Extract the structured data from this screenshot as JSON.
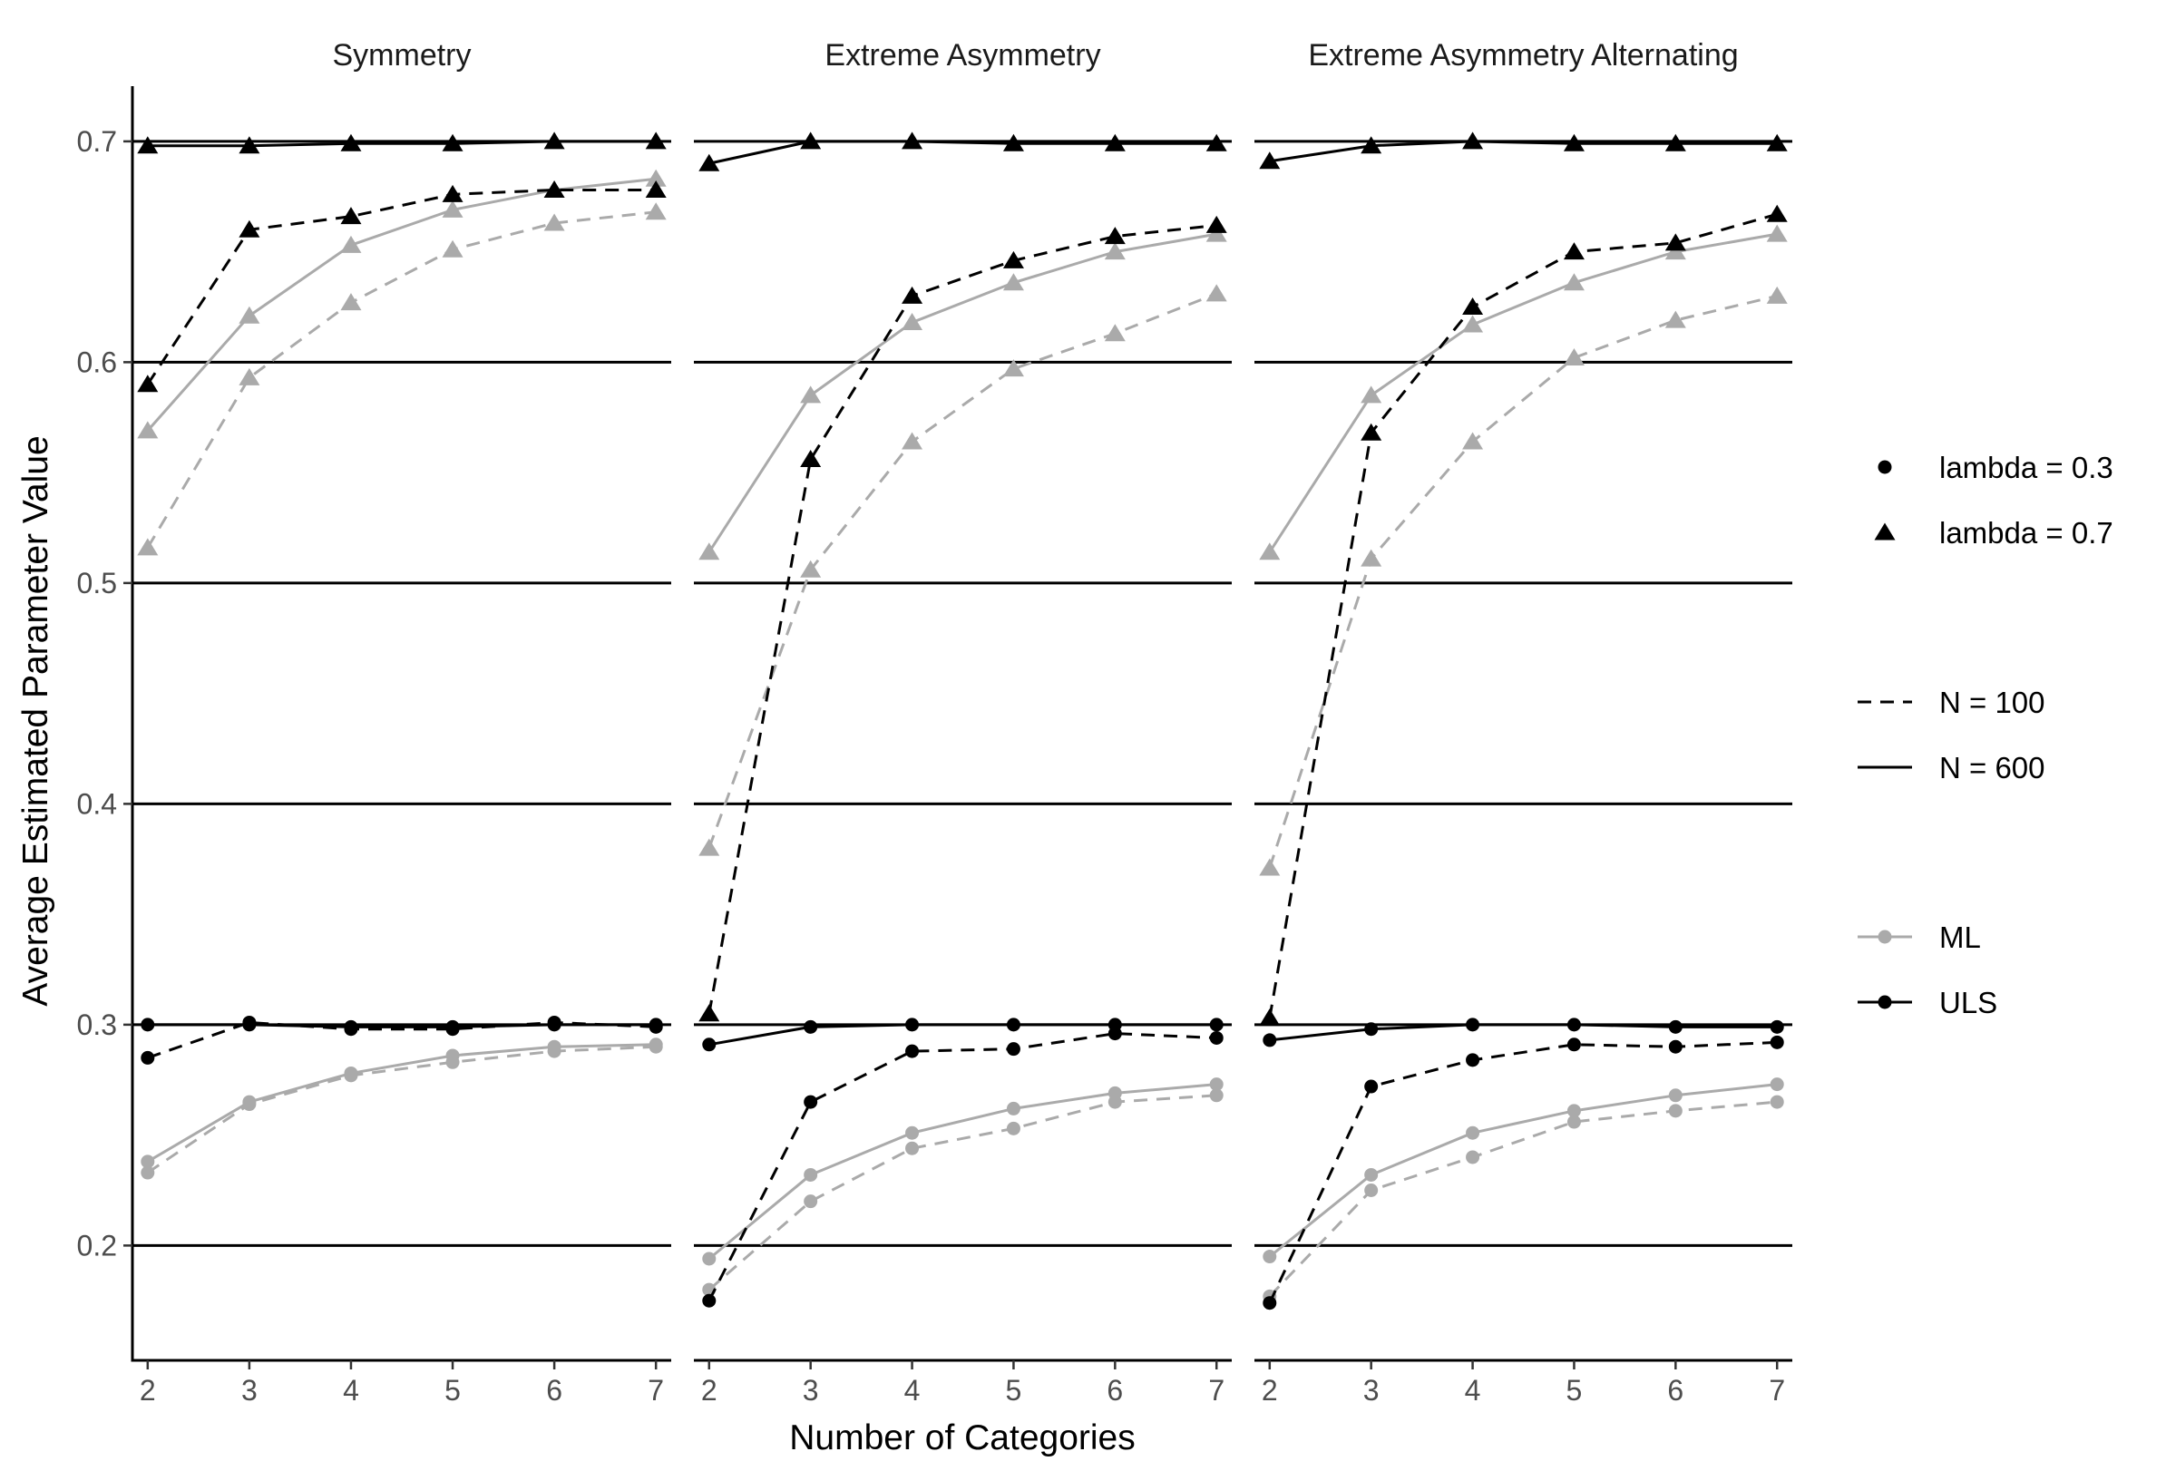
{
  "chart_data": {
    "type": "line",
    "xlabel": "Number of Categories",
    "ylabel": "Average Estimated Parameter Value",
    "x": [
      2,
      3,
      4,
      5,
      6,
      7
    ],
    "x_ticks": [
      "2",
      "3",
      "4",
      "5",
      "6",
      "7"
    ],
    "y_ticks": [
      "0.2",
      "0.3",
      "0.4",
      "0.5",
      "0.6",
      "0.7"
    ],
    "y_tick_values": [
      0.2,
      0.3,
      0.4,
      0.5,
      0.6,
      0.7
    ],
    "ylim": [
      0.148,
      0.725
    ],
    "xlim": [
      1.85,
      7.15
    ],
    "reference_lines": [
      0.2,
      0.3,
      0.4,
      0.5,
      0.6,
      0.7
    ],
    "colors": {
      "ML": "#aaaaaa",
      "ULS": "#000000"
    },
    "legend": {
      "placement": "right",
      "shape": [
        {
          "label": "lambda = 0.3",
          "symbol": "circle"
        },
        {
          "label": "lambda = 0.7",
          "symbol": "triangle"
        }
      ],
      "linetype": [
        {
          "label": "N = 100",
          "dash": "dashed"
        },
        {
          "label": "N = 600",
          "dash": "solid"
        }
      ],
      "color": [
        {
          "label": "ML",
          "key": "ML"
        },
        {
          "label": "ULS",
          "key": "ULS"
        }
      ]
    },
    "panels": [
      {
        "title": "Symmetry",
        "series": [
          {
            "method": "ULS",
            "n": 600,
            "lambda": 0.7,
            "values": [
              0.698,
              0.698,
              0.699,
              0.699,
              0.7,
              0.7
            ]
          },
          {
            "method": "ULS",
            "n": 100,
            "lambda": 0.7,
            "values": [
              0.59,
              0.66,
              0.666,
              0.676,
              0.678,
              0.678
            ]
          },
          {
            "method": "ML",
            "n": 600,
            "lambda": 0.7,
            "values": [
              0.569,
              0.621,
              0.653,
              0.669,
              0.678,
              0.683
            ]
          },
          {
            "method": "ML",
            "n": 100,
            "lambda": 0.7,
            "values": [
              0.516,
              0.593,
              0.627,
              0.651,
              0.663,
              0.668
            ]
          },
          {
            "method": "ULS",
            "n": 600,
            "lambda": 0.3,
            "values": [
              0.3,
              0.3,
              0.299,
              0.299,
              0.3,
              0.3
            ]
          },
          {
            "method": "ULS",
            "n": 100,
            "lambda": 0.3,
            "values": [
              0.285,
              0.301,
              0.298,
              0.298,
              0.301,
              0.299
            ]
          },
          {
            "method": "ML",
            "n": 600,
            "lambda": 0.3,
            "values": [
              0.238,
              0.265,
              0.278,
              0.286,
              0.29,
              0.291
            ]
          },
          {
            "method": "ML",
            "n": 100,
            "lambda": 0.3,
            "values": [
              0.233,
              0.264,
              0.277,
              0.283,
              0.288,
              0.29
            ]
          }
        ]
      },
      {
        "title": "Extreme Asymmetry",
        "series": [
          {
            "method": "ULS",
            "n": 600,
            "lambda": 0.7,
            "values": [
              0.69,
              0.7,
              0.7,
              0.699,
              0.699,
              0.699
            ]
          },
          {
            "method": "ULS",
            "n": 100,
            "lambda": 0.7,
            "values": [
              0.305,
              0.556,
              0.63,
              0.646,
              0.657,
              0.662
            ]
          },
          {
            "method": "ML",
            "n": 600,
            "lambda": 0.7,
            "values": [
              0.514,
              0.585,
              0.618,
              0.636,
              0.65,
              0.658
            ]
          },
          {
            "method": "ML",
            "n": 100,
            "lambda": 0.7,
            "values": [
              0.38,
              0.506,
              0.564,
              0.597,
              0.613,
              0.631
            ]
          },
          {
            "method": "ULS",
            "n": 600,
            "lambda": 0.3,
            "values": [
              0.291,
              0.299,
              0.3,
              0.3,
              0.3,
              0.3
            ]
          },
          {
            "method": "ULS",
            "n": 100,
            "lambda": 0.3,
            "values": [
              0.175,
              0.265,
              0.288,
              0.289,
              0.296,
              0.294
            ]
          },
          {
            "method": "ML",
            "n": 600,
            "lambda": 0.3,
            "values": [
              0.194,
              0.232,
              0.251,
              0.262,
              0.269,
              0.273
            ]
          },
          {
            "method": "ML",
            "n": 100,
            "lambda": 0.3,
            "values": [
              0.18,
              0.22,
              0.244,
              0.253,
              0.265,
              0.268
            ]
          }
        ]
      },
      {
        "title": "Extreme Asymmetry Alternating",
        "series": [
          {
            "method": "ULS",
            "n": 600,
            "lambda": 0.7,
            "values": [
              0.691,
              0.698,
              0.7,
              0.699,
              0.699,
              0.699
            ]
          },
          {
            "method": "ULS",
            "n": 100,
            "lambda": 0.7,
            "values": [
              0.303,
              0.568,
              0.625,
              0.65,
              0.654,
              0.667
            ]
          },
          {
            "method": "ML",
            "n": 600,
            "lambda": 0.7,
            "values": [
              0.514,
              0.585,
              0.617,
              0.636,
              0.65,
              0.658
            ]
          },
          {
            "method": "ML",
            "n": 100,
            "lambda": 0.7,
            "values": [
              0.371,
              0.511,
              0.564,
              0.602,
              0.619,
              0.63
            ]
          },
          {
            "method": "ULS",
            "n": 600,
            "lambda": 0.3,
            "values": [
              0.293,
              0.298,
              0.3,
              0.3,
              0.299,
              0.299
            ]
          },
          {
            "method": "ULS",
            "n": 100,
            "lambda": 0.3,
            "values": [
              0.174,
              0.272,
              0.284,
              0.291,
              0.29,
              0.292
            ]
          },
          {
            "method": "ML",
            "n": 600,
            "lambda": 0.3,
            "values": [
              0.195,
              0.232,
              0.251,
              0.261,
              0.268,
              0.273
            ]
          },
          {
            "method": "ML",
            "n": 100,
            "lambda": 0.3,
            "values": [
              0.177,
              0.225,
              0.24,
              0.256,
              0.261,
              0.265
            ]
          }
        ]
      }
    ]
  }
}
